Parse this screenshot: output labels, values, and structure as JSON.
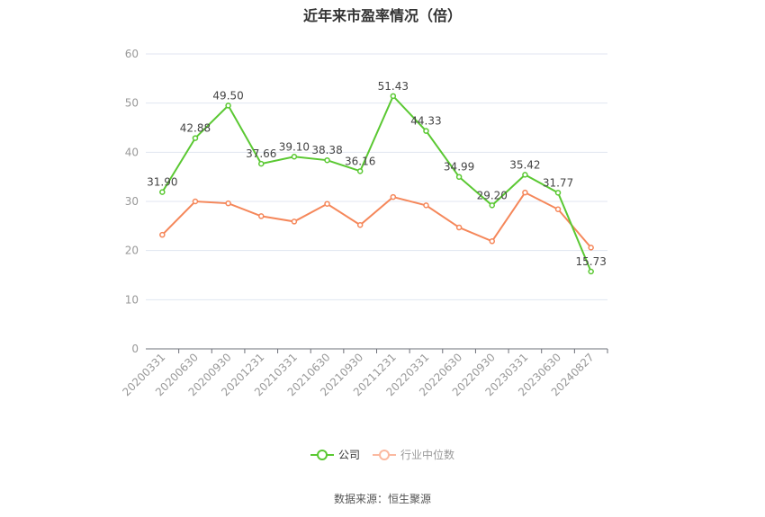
{
  "chart_data": {
    "type": "line",
    "title": "近年来市盈率情况（倍）",
    "categories": [
      "20200331",
      "20200630",
      "20200930",
      "20201231",
      "20210331",
      "20210630",
      "20210930",
      "20211231",
      "20220331",
      "20220630",
      "20220930",
      "20230331",
      "20230630",
      "20240827"
    ],
    "series": [
      {
        "name": "公司",
        "color": "#5ac832",
        "values": [
          31.9,
          42.88,
          49.5,
          37.66,
          39.1,
          38.38,
          36.16,
          51.43,
          44.33,
          34.99,
          29.2,
          35.42,
          31.77,
          15.73
        ],
        "labels": [
          "31.90",
          "42.88",
          "49.50",
          "37.66",
          "39.10",
          "38.38",
          "36.16",
          "51.43",
          "44.33",
          "34.99",
          "29.20",
          "35.42",
          "31.77",
          "15.73"
        ]
      },
      {
        "name": "行业中位数",
        "color": "#f5875a",
        "values": [
          23.2,
          30.0,
          29.6,
          27.0,
          25.9,
          29.5,
          25.2,
          30.9,
          29.2,
          24.7,
          21.9,
          31.8,
          28.4,
          20.6
        ]
      }
    ],
    "ylim": [
      0,
      60
    ],
    "yticks": [
      "0",
      "10",
      "20",
      "30",
      "40",
      "50",
      "60"
    ],
    "grid": true,
    "legend": "bottom-center",
    "xlabel": "",
    "ylabel": ""
  },
  "source": "数据来源：恒生聚源"
}
